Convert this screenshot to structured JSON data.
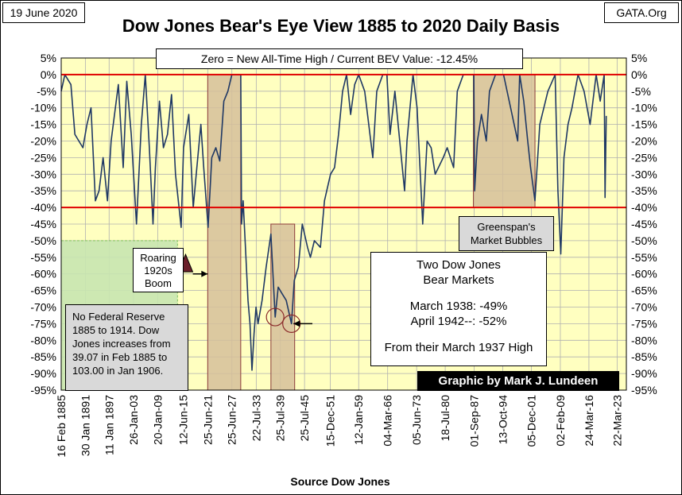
{
  "header": {
    "date": "19 June 2020",
    "source_site": "GATA.Org"
  },
  "title": "Dow Jones Bear's Eye View 1885 to 2020 Daily Basis",
  "annotations": {
    "zero_note": "Zero = New All-Time High / Current BEV Value: -12.45%",
    "roaring": [
      "Roaring",
      "1920s",
      "Boom"
    ],
    "no_fed": [
      "No Federal Reserve",
      "1885  to 1914.   Dow",
      "Jones increases from",
      "39.07  in Feb 1885  to",
      "103.00  in Jan 1906."
    ],
    "greenspan": [
      "Greenspan's",
      "Market Bubbles"
    ],
    "two_bear": {
      "heading": [
        "Two Dow Jones",
        "Bear Markets"
      ],
      "lines": [
        "March 1938: -49%",
        "April 1942--: -52%"
      ],
      "footer": "From their March 1937 High"
    },
    "credit": "Graphic by Mark J. Lundeen"
  },
  "colors": {
    "plot_bg": "#ffffc0",
    "series": "#1f3864",
    "ref_line": "#e00000",
    "shade_brown": "#d6c09a",
    "shade_green": "#c8e6b0"
  },
  "chart_data": {
    "type": "line",
    "xlabel": "Source Dow Jones",
    "ylabel": "",
    "ylim": [
      -95,
      5
    ],
    "yticks": [
      "5%",
      "0%",
      "-5%",
      "-10%",
      "-15%",
      "-20%",
      "-25%",
      "-30%",
      "-35%",
      "-40%",
      "-45%",
      "-50%",
      "-55%",
      "-60%",
      "-65%",
      "-70%",
      "-75%",
      "-80%",
      "-85%",
      "-90%",
      "-95%"
    ],
    "ytick_values": [
      5,
      0,
      -5,
      -10,
      -15,
      -20,
      -25,
      -30,
      -35,
      -40,
      -45,
      -50,
      -55,
      -60,
      -65,
      -70,
      -75,
      -80,
      -85,
      -90,
      -95
    ],
    "xticks": [
      "16 Feb 1885",
      "30 Jan 1891",
      "11 Jan 1897",
      "26-Jan-03",
      "20-Jan-09",
      "12-Jun-15",
      "25-Jun-21",
      "25-Jun-27",
      "22-Jul-33",
      "25-Jul-39",
      "25-Jul-45",
      "15-Dec-51",
      "12-Jan-59",
      "04-Mar-66",
      "05-Jun-73",
      "18-Jul-80",
      "01-Sep-87",
      "13-Oct-94",
      "05-Dec-01",
      "02-Feb-09",
      "24-Mar-16",
      "22-Mar-23"
    ],
    "xtick_years": [
      1885.1,
      1891.1,
      1897.0,
      1903.1,
      1909.1,
      1915.4,
      1921.5,
      1927.5,
      1933.55,
      1939.55,
      1945.55,
      1951.95,
      1959.0,
      1966.2,
      1973.4,
      1980.5,
      1987.7,
      1994.8,
      2001.9,
      2009.1,
      2016.2,
      2023.2
    ],
    "reference_lines": [
      0,
      -40
    ],
    "series": [
      {
        "x": [
          1885.1,
          1886.0,
          1887.5,
          1888.5,
          1890.5,
          1891.5,
          1892.5,
          1893.6,
          1894.5,
          1895.5,
          1896.6,
          1897.5,
          1899.3,
          1900.5,
          1901.4,
          1902.5,
          1903.8,
          1905.0,
          1906.0,
          1907.0,
          1907.9,
          1908.5,
          1909.5,
          1910.5,
          1911.5,
          1912.5,
          1913.5,
          1914.9,
          1915.5,
          1916.8,
          1917.9,
          1918.5,
          1919.8,
          1920.5,
          1921.6,
          1922.5,
          1923.5,
          1924.5,
          1925.5,
          1926.5,
          1927.5,
          1928.5,
          1929.7,
          1929.9,
          1930.3,
          1931.0,
          1931.5,
          1932.0,
          1932.5,
          1933.0,
          1933.5,
          1934.0,
          1935.0,
          1936.0,
          1937.2,
          1938.25,
          1939.0,
          1940.0,
          1941.0,
          1942.3,
          1943.0,
          1944.0,
          1945.0,
          1946.3,
          1947.0,
          1948.0,
          1949.5,
          1950.5,
          1952.0,
          1953.0,
          1954.0,
          1955.0,
          1956.0,
          1957.0,
          1958.0,
          1959.0,
          1960.5,
          1962.5,
          1963.5,
          1965.0,
          1966.0,
          1966.8,
          1968.0,
          1970.4,
          1971.0,
          1972.5,
          1973.5,
          1974.9,
          1976.0,
          1977.0,
          1978.0,
          1980.0,
          1981.0,
          1982.6,
          1983.5,
          1985.0,
          1986.0,
          1987.6,
          1987.8,
          1988.5,
          1989.5,
          1990.7,
          1991.5,
          1993.0,
          1995.0,
          1998.5,
          1999.0,
          2000.0,
          2001.0,
          2001.7,
          2002.8,
          2004.0,
          2006.0,
          2007.8,
          2008.5,
          2009.2,
          2010.0,
          2011.0,
          2012.0,
          2013.5,
          2015.0,
          2016.5,
          2018.0,
          2019.0,
          2020.0,
          2020.2,
          2020.5
        ],
        "y": [
          -5,
          0,
          -3,
          -18,
          -22,
          -15,
          -10,
          -38,
          -35,
          -25,
          -38,
          -20,
          -3,
          -28,
          -2,
          -18,
          -45,
          -15,
          0,
          -22,
          -45,
          -28,
          -8,
          -22,
          -18,
          -6,
          -30,
          -46,
          -22,
          -12,
          -40,
          -32,
          -15,
          -28,
          -46,
          -25,
          -22,
          -26,
          -8,
          -5,
          0,
          0,
          0,
          -45,
          -38,
          -55,
          -68,
          -75,
          -89,
          -78,
          -70,
          -75,
          -68,
          -58,
          -48,
          -73,
          -64,
          -66,
          -68,
          -75,
          -62,
          -58,
          -45,
          -52,
          -55,
          -50,
          -52,
          -38,
          -30,
          -28,
          -18,
          -5,
          0,
          -12,
          -3,
          0,
          -5,
          -25,
          -5,
          0,
          0,
          -18,
          -5,
          -35,
          -20,
          0,
          -10,
          -45,
          -20,
          -22,
          -30,
          -25,
          -22,
          -28,
          -5,
          0,
          0,
          0,
          -35,
          -20,
          -12,
          -20,
          -5,
          0,
          0,
          -20,
          0,
          -8,
          -20,
          -28,
          -38,
          -15,
          -5,
          0,
          -35,
          -54,
          -25,
          -15,
          -10,
          0,
          -5,
          -15,
          0,
          -8,
          0,
          -37,
          -12.45
        ]
      }
    ],
    "shaded_regions": [
      {
        "color": "shade_green",
        "x": [
          1885.1,
          1914.0
        ],
        "y": [
          -95,
          -50
        ]
      },
      {
        "color": "shade_brown",
        "x": [
          1921.5,
          1929.7
        ],
        "y": [
          -95,
          0
        ]
      },
      {
        "color": "shade_brown",
        "x": [
          1937.2,
          1943.1
        ],
        "y": [
          -95,
          -45
        ]
      },
      {
        "color": "shade_brown",
        "x": [
          1987.5,
          2002.8
        ],
        "y": [
          -40,
          0
        ]
      }
    ],
    "markers": {
      "circles": [
        {
          "x": 1938.25,
          "y": -73
        },
        {
          "x": 1942.3,
          "y": -75
        }
      ],
      "triangle": {
        "x": 1916.0,
        "y": -57
      },
      "arrows": [
        {
          "from": [
            1917.8,
            -60
          ],
          "to": [
            1921.5,
            -60
          ]
        },
        {
          "from": [
            1947.5,
            -75
          ],
          "to": [
            1942.8,
            -75
          ]
        }
      ]
    }
  }
}
